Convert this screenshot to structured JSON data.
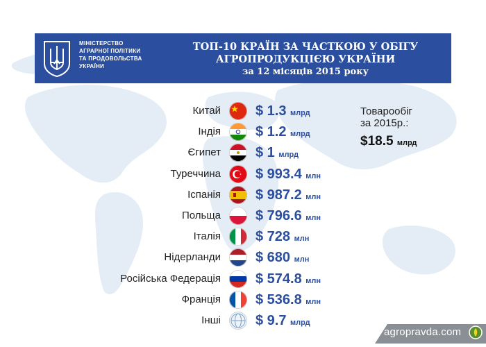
{
  "header": {
    "ministry_lines": [
      "МІНІСТЕРСТВО",
      "АГРАРНОЇ ПОЛІТИКИ",
      "ТА ПРОДОВОЛЬСТВА",
      "УКРАЇНИ"
    ],
    "title_line1": "ТОП-10 КРАЇН ЗА ЧАСТКОЮ У ОБІГУ",
    "title_line2": "АГРОПРОДУКЦІЄЮ УКРАЇНИ",
    "title_line3": "за 12 місяців 2015 року",
    "background_color": "#2b4f9e",
    "emblem_icon": "trident-icon"
  },
  "total": {
    "label_lines": [
      "Товарообіг",
      "за 2015р.:"
    ],
    "amount": "$18.5",
    "unit": "млрд"
  },
  "footer": {
    "site": "agropravda.com",
    "logo_icon": "agropravda-logo-icon"
  },
  "chart_data": {
    "type": "table",
    "columns": [
      "country",
      "amount",
      "unit"
    ],
    "rows": [
      {
        "country": "Китай",
        "display": "$ 1.3",
        "unit": "млрд",
        "value_usd_mln": 1300,
        "flag": "china-flag-icon"
      },
      {
        "country": "Індія",
        "display": "$ 1.2",
        "unit": "млрд",
        "value_usd_mln": 1200,
        "flag": "india-flag-icon"
      },
      {
        "country": "Єгипет",
        "display": "$ 1",
        "unit": "млрд",
        "value_usd_mln": 1000,
        "flag": "egypt-flag-icon"
      },
      {
        "country": "Туреччина",
        "display": "$ 993.4",
        "unit": "млн",
        "value_usd_mln": 993.4,
        "flag": "turkey-flag-icon"
      },
      {
        "country": "Іспанія",
        "display": "$ 987.2",
        "unit": "млн",
        "value_usd_mln": 987.2,
        "flag": "spain-flag-icon"
      },
      {
        "country": "Польща",
        "display": "$ 796.6",
        "unit": "млн",
        "value_usd_mln": 796.6,
        "flag": "poland-flag-icon"
      },
      {
        "country": "Італія",
        "display": "$ 728",
        "unit": "млн",
        "value_usd_mln": 728,
        "flag": "italy-flag-icon"
      },
      {
        "country": "Нідерланди",
        "display": "$ 680",
        "unit": "млн",
        "value_usd_mln": 680,
        "flag": "netherlands-flag-icon"
      },
      {
        "country": "Російська Федерація",
        "display": "$ 574.8",
        "unit": "млн",
        "value_usd_mln": 574.8,
        "flag": "russia-flag-icon"
      },
      {
        "country": "Франція",
        "display": "$ 536.8",
        "unit": "млн",
        "value_usd_mln": 536.8,
        "flag": "france-flag-icon"
      },
      {
        "country": "Інші",
        "display": "$ 9.7",
        "unit": "млрд",
        "value_usd_mln": 9700,
        "flag": "globe-icon"
      }
    ],
    "value_color": "#2b4f9e"
  }
}
